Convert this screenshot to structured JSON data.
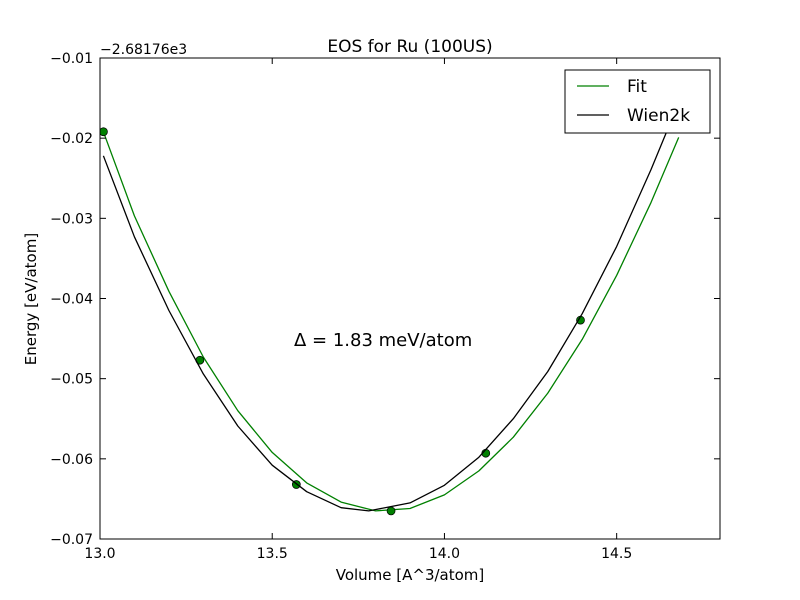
{
  "chart_data": {
    "type": "line",
    "title": "EOS for Ru (100US)",
    "xlabel": "Volume [A^3/atom]",
    "ylabel": "Energy [eV/atom]",
    "offset_label": "−2.68176e3",
    "annotation": "Δ = 1.83 meV/atom",
    "xlim": [
      13.0,
      14.8
    ],
    "ylim": [
      -0.07,
      -0.01
    ],
    "xticks": [
      13.0,
      13.5,
      14.0,
      14.5
    ],
    "xtick_labels": [
      "13.0",
      "13.5",
      "14.0",
      "14.5"
    ],
    "yticks": [
      -0.07,
      -0.06,
      -0.05,
      -0.04,
      -0.03,
      -0.02,
      -0.01
    ],
    "ytick_labels": [
      "−0.07",
      "−0.06",
      "−0.05",
      "−0.04",
      "−0.03",
      "−0.02",
      "−0.01"
    ],
    "legend": {
      "placement": "top-right",
      "entries": [
        "Fit",
        "Wien2k"
      ]
    },
    "grid": false,
    "series": [
      {
        "name": "Fit",
        "color": "#008000",
        "style": "line+markers",
        "curve_x": [
          13.01,
          13.1,
          13.2,
          13.3,
          13.4,
          13.5,
          13.6,
          13.7,
          13.8,
          13.9,
          14.0,
          14.1,
          14.2,
          14.3,
          14.4,
          14.5,
          14.6,
          14.68
        ],
        "curve_y": [
          -0.0192,
          -0.0297,
          -0.0391,
          -0.0473,
          -0.054,
          -0.0592,
          -0.063,
          -0.0654,
          -0.0665,
          -0.0662,
          -0.0645,
          -0.0615,
          -0.0573,
          -0.0518,
          -0.0451,
          -0.0371,
          -0.028,
          -0.0199
        ],
        "points_x": [
          13.01,
          13.29,
          13.57,
          13.845,
          14.12,
          14.395
        ],
        "points_y": [
          -0.0192,
          -0.0477,
          -0.0632,
          -0.0665,
          -0.0593,
          -0.0427
        ]
      },
      {
        "name": "Wien2k",
        "color": "#000000",
        "style": "line",
        "curve_x": [
          13.01,
          13.1,
          13.2,
          13.3,
          13.4,
          13.5,
          13.6,
          13.7,
          13.78,
          13.9,
          14.0,
          14.1,
          14.2,
          14.3,
          14.4,
          14.5,
          14.6,
          14.65
        ],
        "curve_y": [
          -0.0222,
          -0.0323,
          -0.0415,
          -0.0494,
          -0.0559,
          -0.0608,
          -0.0641,
          -0.0661,
          -0.0665,
          -0.0655,
          -0.0633,
          -0.0598,
          -0.055,
          -0.0491,
          -0.0419,
          -0.0335,
          -0.0239,
          -0.0187
        ]
      }
    ]
  }
}
